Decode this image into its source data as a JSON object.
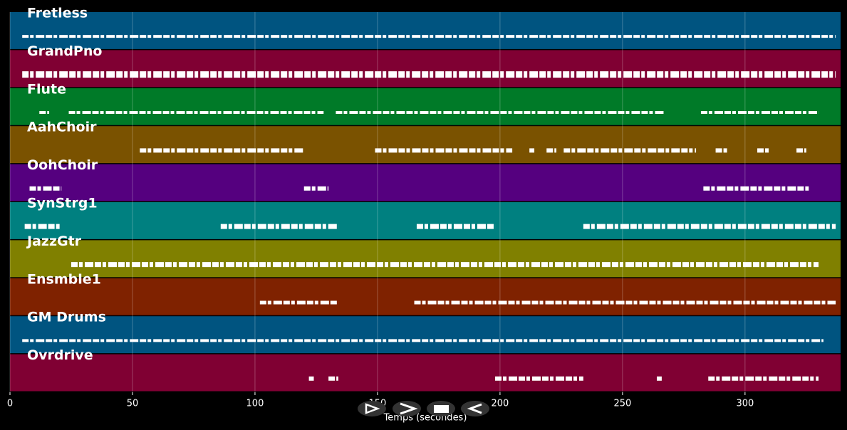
{
  "chart_data": {
    "type": "piano_roll",
    "xlabel": "Temps (secondes)",
    "xlim": [
      0,
      339
    ],
    "xticks": [
      0,
      50,
      100,
      150,
      200,
      250,
      300
    ],
    "grid": true,
    "tracks": [
      {
        "name": "Fretless",
        "color": "#005480",
        "notes": [
          [
            5,
            337
          ]
        ]
      },
      {
        "name": "GrandPno",
        "color": "#800033",
        "notes": [
          [
            5,
            337
          ]
        ]
      },
      {
        "name": "Flute",
        "color": "#007a28",
        "notes": [
          [
            12,
            16
          ],
          [
            24,
            128
          ],
          [
            133,
            267
          ],
          [
            282,
            330
          ]
        ]
      },
      {
        "name": "AahChoir",
        "color": "#7a5200",
        "notes": [
          [
            53,
            120
          ],
          [
            149,
            205
          ],
          [
            212,
            214
          ],
          [
            219,
            223
          ],
          [
            226,
            280
          ],
          [
            288,
            293
          ],
          [
            305,
            310
          ],
          [
            321,
            325
          ]
        ]
      },
      {
        "name": "OohChoir",
        "color": "#55007f",
        "notes": [
          [
            8,
            21
          ],
          [
            120,
            130
          ],
          [
            283,
            326
          ]
        ]
      },
      {
        "name": "SynStrg1",
        "color": "#008080",
        "notes": [
          [
            6,
            21
          ],
          [
            86,
            134
          ],
          [
            166,
            198
          ],
          [
            234,
            337
          ]
        ]
      },
      {
        "name": "JazzGtr",
        "color": "#808000",
        "notes": [
          [
            25,
            330
          ]
        ]
      },
      {
        "name": "Ensmble1",
        "color": "#7f2200",
        "notes": [
          [
            102,
            134
          ],
          [
            165,
            337
          ]
        ]
      },
      {
        "name": "GM Drums",
        "color": "#005480",
        "notes": [
          [
            5,
            332
          ]
        ]
      },
      {
        "name": "Ovrdrive",
        "color": "#800033",
        "notes": [
          [
            122,
            124
          ],
          [
            130,
            134
          ],
          [
            198,
            234
          ],
          [
            264,
            266
          ],
          [
            285,
            330
          ]
        ]
      }
    ]
  }
}
